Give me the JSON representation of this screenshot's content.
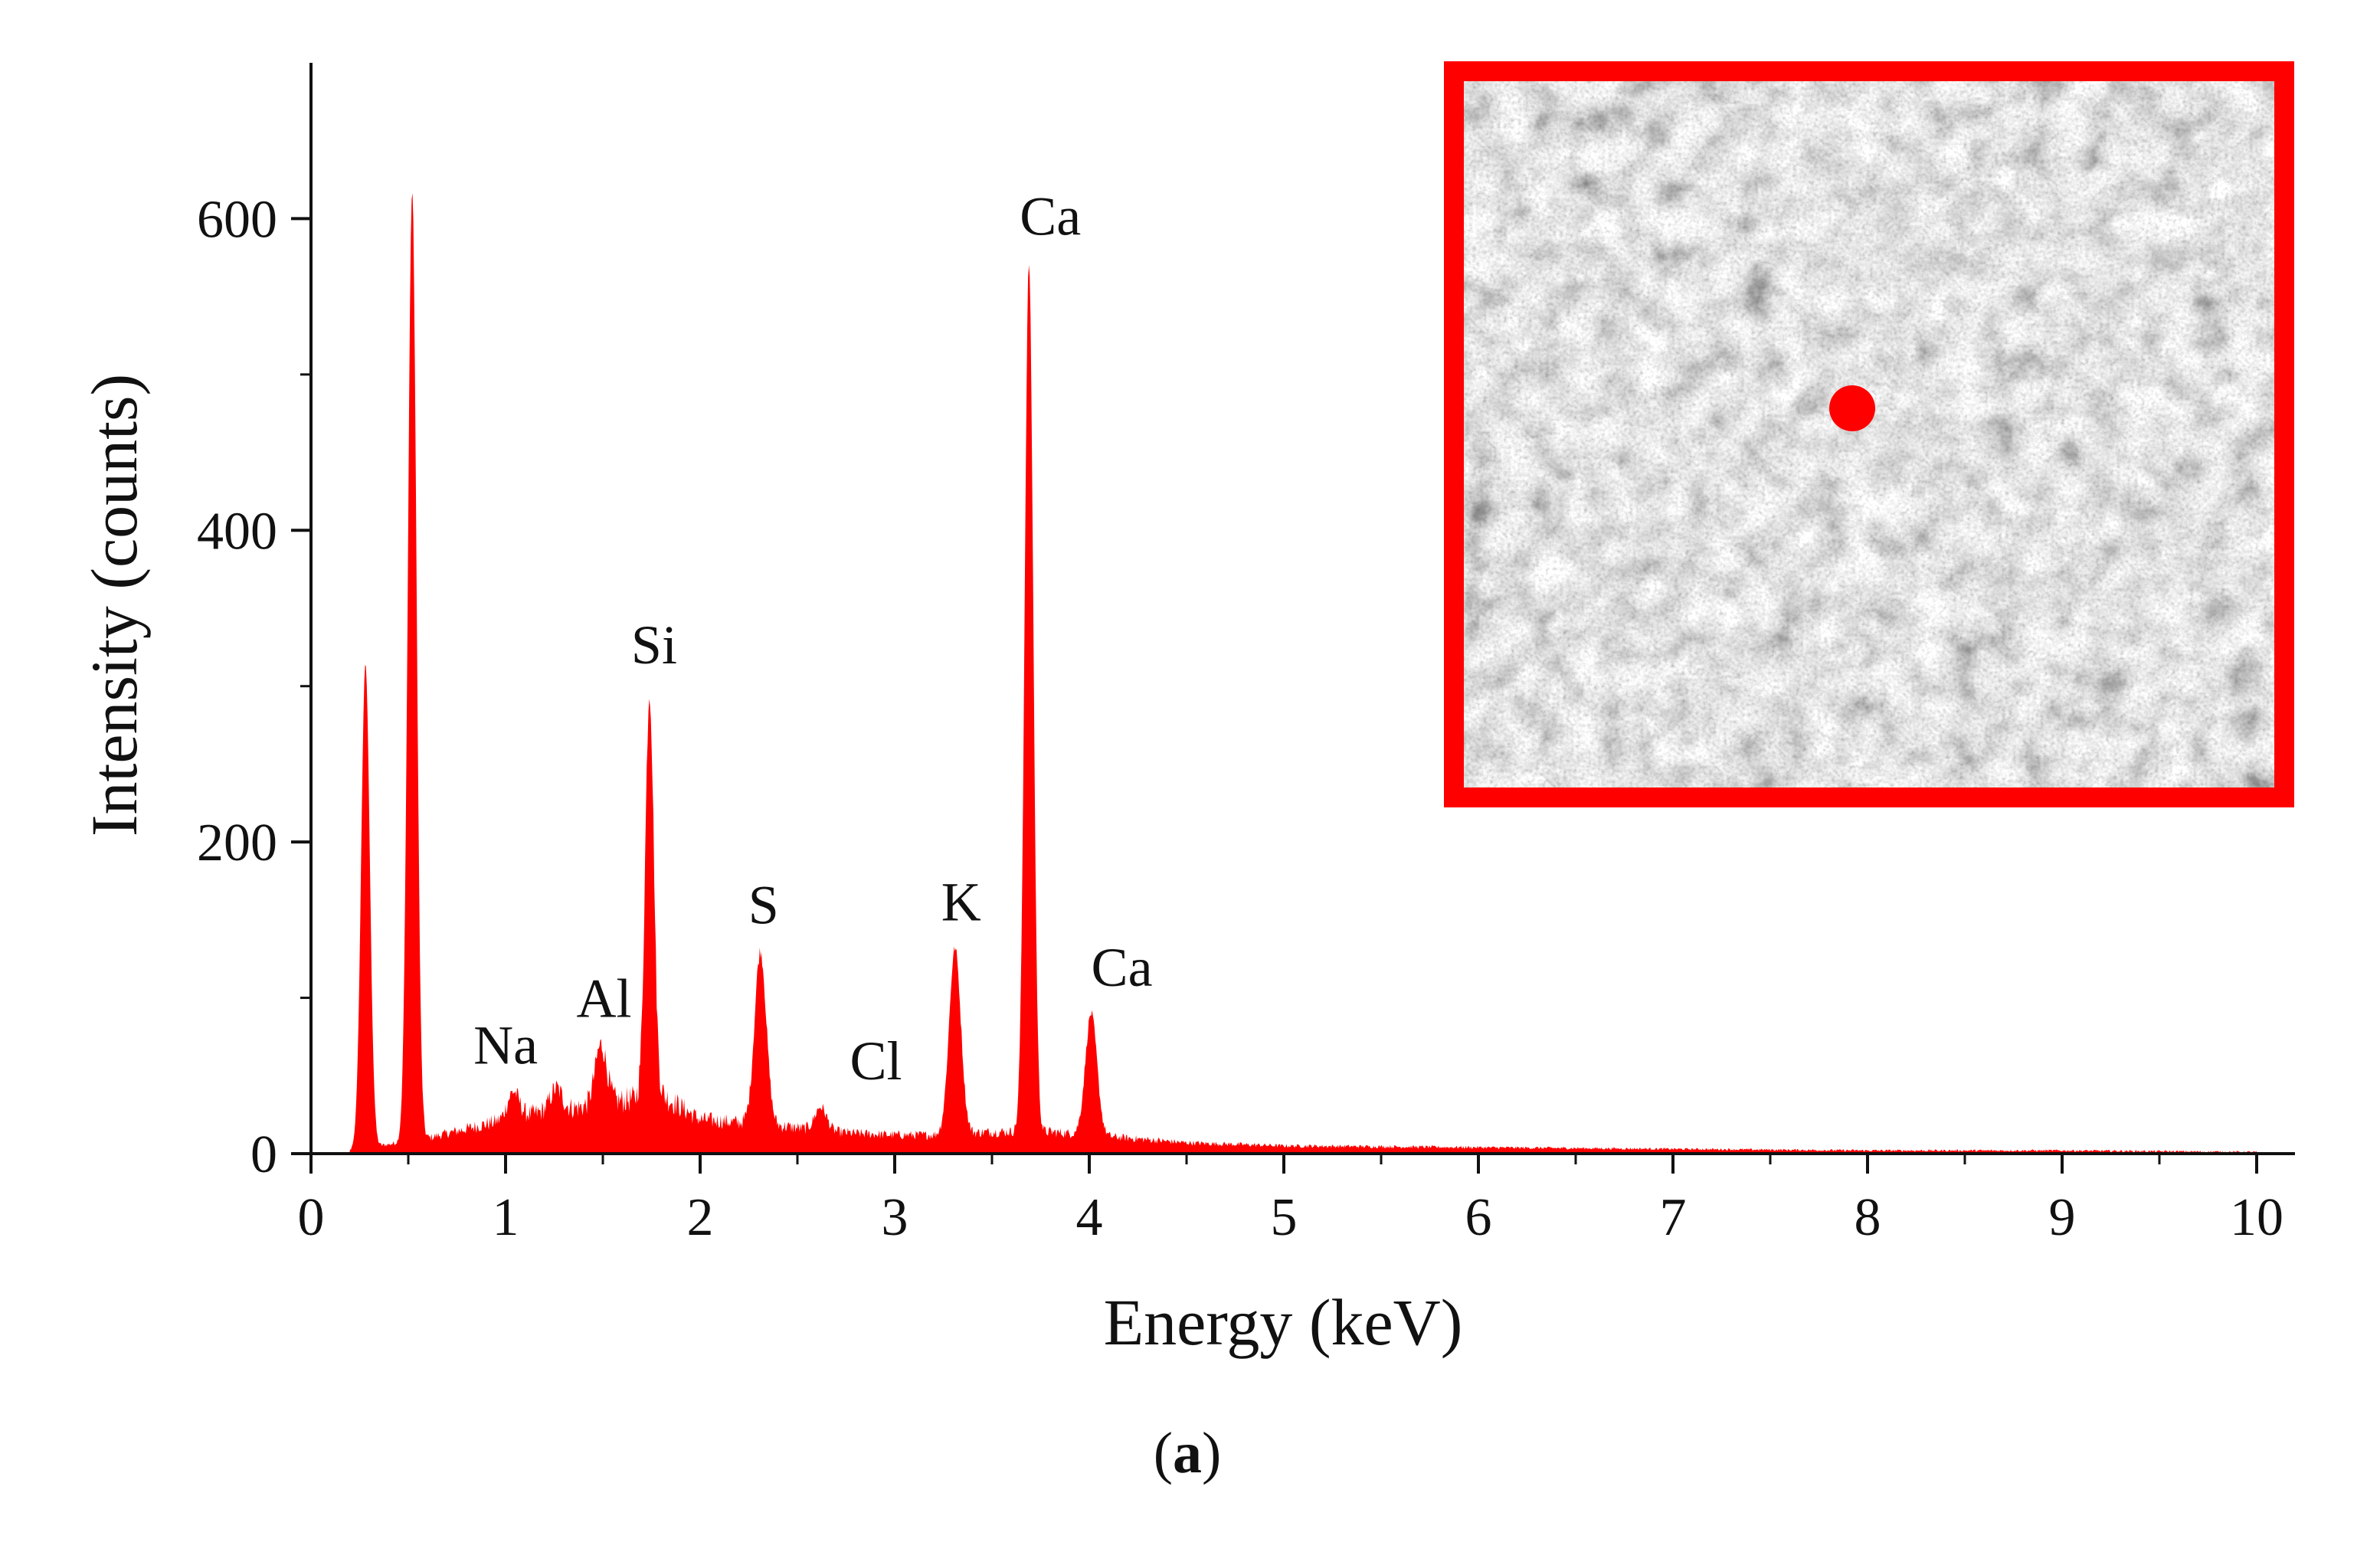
{
  "chart_data": {
    "type": "area",
    "xlabel": "Energy (keV)",
    "ylabel": "Intensity (counts)",
    "xlim": [
      0,
      10
    ],
    "ylim": [
      0,
      700
    ],
    "x_ticks": [
      "0",
      "1",
      "2",
      "3",
      "4",
      "5",
      "6",
      "7",
      "8",
      "9",
      "10"
    ],
    "y_ticks": [
      "0",
      "200",
      "400",
      "600"
    ],
    "grid": false,
    "legend": "none",
    "series_color": "#ff0000",
    "baseline": [
      [
        0.18,
        0
      ],
      [
        0.2,
        2
      ],
      [
        0.6,
        10
      ],
      [
        0.8,
        16
      ],
      [
        1.0,
        22
      ],
      [
        1.2,
        27
      ],
      [
        1.4,
        30
      ],
      [
        1.6,
        34
      ],
      [
        1.8,
        38
      ],
      [
        2.0,
        22
      ],
      [
        2.2,
        20
      ],
      [
        2.4,
        18
      ],
      [
        2.6,
        15
      ],
      [
        2.8,
        13
      ],
      [
        3.0,
        12
      ],
      [
        3.2,
        12
      ],
      [
        3.5,
        14
      ],
      [
        3.8,
        14
      ],
      [
        4.2,
        10
      ],
      [
        4.5,
        7
      ],
      [
        5.0,
        5
      ],
      [
        6.0,
        4
      ],
      [
        7.0,
        3
      ],
      [
        8.0,
        2
      ],
      [
        9.0,
        2
      ],
      [
        10.0,
        1
      ]
    ],
    "peaks": [
      {
        "label": "",
        "energy": 0.28,
        "intensity": 315
      },
      {
        "label": "",
        "energy": 0.52,
        "intensity": 618
      },
      {
        "label": "Na",
        "energy": 1.04,
        "intensity": 40
      },
      {
        "label": "",
        "energy": 1.26,
        "intensity": 42
      },
      {
        "label": "Al",
        "energy": 1.49,
        "intensity": 70
      },
      {
        "label": "Si",
        "energy": 1.74,
        "intensity": 297
      },
      {
        "label": "S",
        "energy": 2.31,
        "intensity": 130
      },
      {
        "label": "Cl",
        "energy": 2.62,
        "intensity": 30
      },
      {
        "label": "K",
        "energy": 3.31,
        "intensity": 132
      },
      {
        "label": "Ca",
        "energy": 3.69,
        "intensity": 572
      },
      {
        "label": "Ca",
        "energy": 4.01,
        "intensity": 90
      }
    ],
    "inset": {
      "type": "SEM micrograph",
      "border_color": "#ff0000",
      "marker_color": "#ff0000"
    }
  },
  "panel_label": {
    "open": "(",
    "letter": "a",
    "close": ")"
  }
}
